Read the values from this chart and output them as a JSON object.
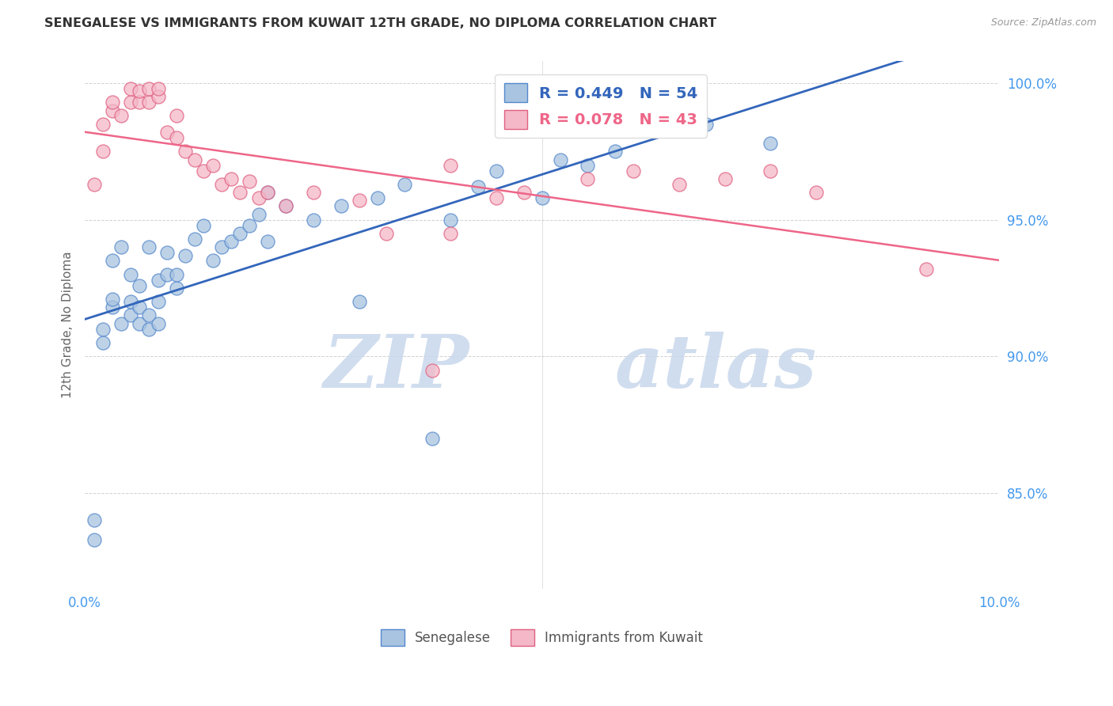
{
  "title": "SENEGALESE VS IMMIGRANTS FROM KUWAIT 12TH GRADE, NO DIPLOMA CORRELATION CHART",
  "source": "Source: ZipAtlas.com",
  "ylabel": "12th Grade, No Diploma",
  "x_min": 0.0,
  "x_max": 0.1,
  "y_min": 0.815,
  "y_max": 1.008,
  "y_ticks": [
    0.85,
    0.9,
    0.95,
    1.0
  ],
  "y_tick_labels": [
    "85.0%",
    "90.0%",
    "95.0%",
    "100.0%"
  ],
  "x_ticks": [
    0.0,
    0.02,
    0.04,
    0.06,
    0.08,
    0.1
  ],
  "x_tick_labels": [
    "0.0%",
    "",
    "",
    "",
    "",
    "10.0%"
  ],
  "blue_R": 0.449,
  "blue_N": 54,
  "pink_R": 0.078,
  "pink_N": 43,
  "blue_color": "#A8C4E0",
  "pink_color": "#F4B8C8",
  "blue_edge_color": "#5588CC",
  "pink_edge_color": "#E06080",
  "blue_line_color": "#3366BB",
  "pink_line_color": "#EE6688",
  "legend_label_blue": "Senegalese",
  "legend_label_pink": "Immigrants from Kuwait",
  "watermark_zip": "ZIP",
  "watermark_atlas": "atlas",
  "blue_x": [
    0.001,
    0.001,
    0.002,
    0.002,
    0.003,
    0.003,
    0.003,
    0.004,
    0.004,
    0.005,
    0.005,
    0.005,
    0.006,
    0.006,
    0.006,
    0.007,
    0.007,
    0.007,
    0.008,
    0.008,
    0.008,
    0.009,
    0.009,
    0.01,
    0.01,
    0.011,
    0.012,
    0.013,
    0.014,
    0.015,
    0.016,
    0.017,
    0.018,
    0.019,
    0.02,
    0.02,
    0.022,
    0.025,
    0.028,
    0.03,
    0.032,
    0.035,
    0.038,
    0.04,
    0.043,
    0.045,
    0.05,
    0.052,
    0.055,
    0.058,
    0.062,
    0.065,
    0.068,
    0.075
  ],
  "blue_y": [
    0.84,
    0.833,
    0.91,
    0.905,
    0.918,
    0.921,
    0.935,
    0.912,
    0.94,
    0.915,
    0.92,
    0.93,
    0.912,
    0.918,
    0.926,
    0.91,
    0.915,
    0.94,
    0.912,
    0.92,
    0.928,
    0.93,
    0.938,
    0.925,
    0.93,
    0.937,
    0.943,
    0.948,
    0.935,
    0.94,
    0.942,
    0.945,
    0.948,
    0.952,
    0.942,
    0.96,
    0.955,
    0.95,
    0.955,
    0.92,
    0.958,
    0.963,
    0.87,
    0.95,
    0.962,
    0.968,
    0.958,
    0.972,
    0.97,
    0.975,
    0.985,
    0.99,
    0.985,
    0.978
  ],
  "pink_x": [
    0.001,
    0.002,
    0.002,
    0.003,
    0.003,
    0.004,
    0.005,
    0.005,
    0.006,
    0.006,
    0.007,
    0.007,
    0.008,
    0.008,
    0.009,
    0.01,
    0.01,
    0.011,
    0.012,
    0.013,
    0.014,
    0.015,
    0.016,
    0.017,
    0.018,
    0.019,
    0.02,
    0.022,
    0.025,
    0.03,
    0.033,
    0.038,
    0.04,
    0.04,
    0.045,
    0.048,
    0.055,
    0.06,
    0.065,
    0.07,
    0.075,
    0.08,
    0.092
  ],
  "pink_y": [
    0.963,
    0.975,
    0.985,
    0.99,
    0.993,
    0.988,
    0.993,
    0.998,
    0.993,
    0.997,
    0.993,
    0.998,
    0.995,
    0.998,
    0.982,
    0.98,
    0.988,
    0.975,
    0.972,
    0.968,
    0.97,
    0.963,
    0.965,
    0.96,
    0.964,
    0.958,
    0.96,
    0.955,
    0.96,
    0.957,
    0.945,
    0.895,
    0.97,
    0.945,
    0.958,
    0.96,
    0.965,
    0.968,
    0.963,
    0.965,
    0.968,
    0.96,
    0.932
  ]
}
